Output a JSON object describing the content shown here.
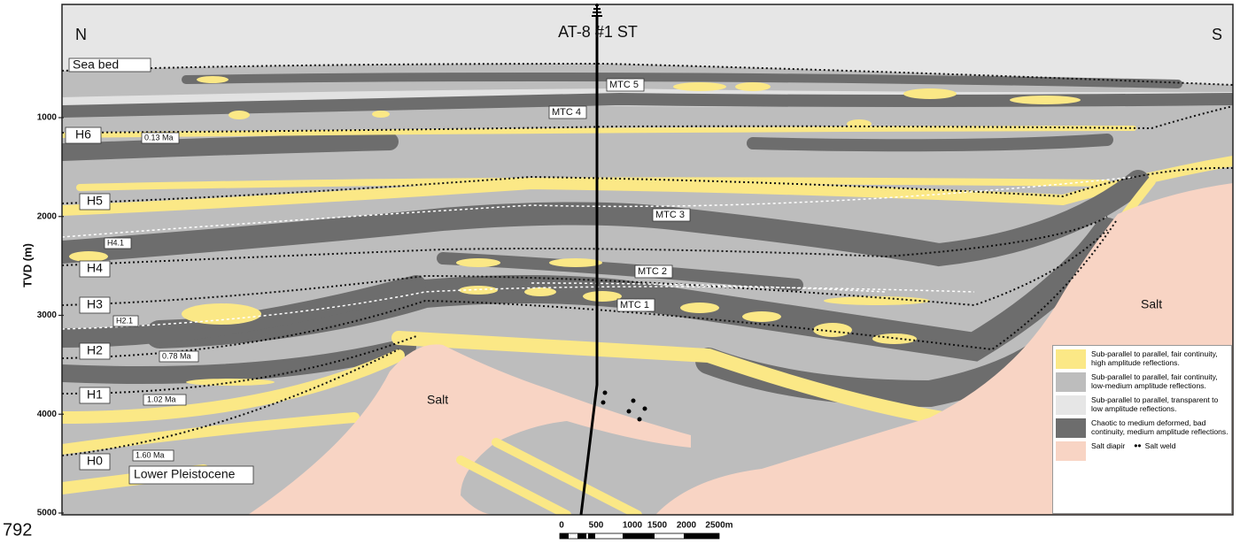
{
  "header": {
    "north": "N",
    "south": "S",
    "well": "AT-8 #1 ST",
    "page_number": "792"
  },
  "depth_axis": {
    "label": "TVD (m)",
    "ticks": [
      1000,
      2000,
      3000,
      4000,
      5000
    ]
  },
  "labels": {
    "sea_bed": "Sea bed",
    "mtc5": "MTC 5",
    "mtc4": "MTC 4",
    "h6": "H6",
    "h6_age": "0.13 Ma",
    "h5": "H5",
    "mtc3": "MTC 3",
    "h4_1": "H4.1",
    "h4": "H4",
    "mtc2": "MTC 2",
    "h3": "H3",
    "h2_1": "H2.1",
    "mtc1": "MTC 1",
    "h2": "H2",
    "h2_age": "0.78 Ma",
    "h1": "H1",
    "h1_age": "1.02 Ma",
    "h0": "H0",
    "h0_age": "1.60 Ma",
    "lower_pleistocene": "Lower Pleistocene",
    "salt_left": "Salt",
    "salt_right": "Salt"
  },
  "scale_bar": [
    "0",
    "500",
    "1000",
    "1500",
    "2000",
    "2500m"
  ],
  "legend": [
    {
      "color": "#fbe886",
      "text": "Sub-parallel to parallel, fair continuity, high amplitude reflections."
    },
    {
      "color": "#bdbdbd",
      "text": "Sub-parallel to parallel, fair continuity, low-medium amplitude reflections."
    },
    {
      "color": "#e6e6e6",
      "text": "Sub-parallel to parallel, transparent to low amplitude reflections."
    },
    {
      "color": "#6d6d6d",
      "text": "Chaotic to medium deformed, bad continuity, medium amplitude reflections."
    },
    {
      "color": "#f8d4c4",
      "text": "Salt diapir"
    }
  ],
  "salt_weld": "Salt weld"
}
